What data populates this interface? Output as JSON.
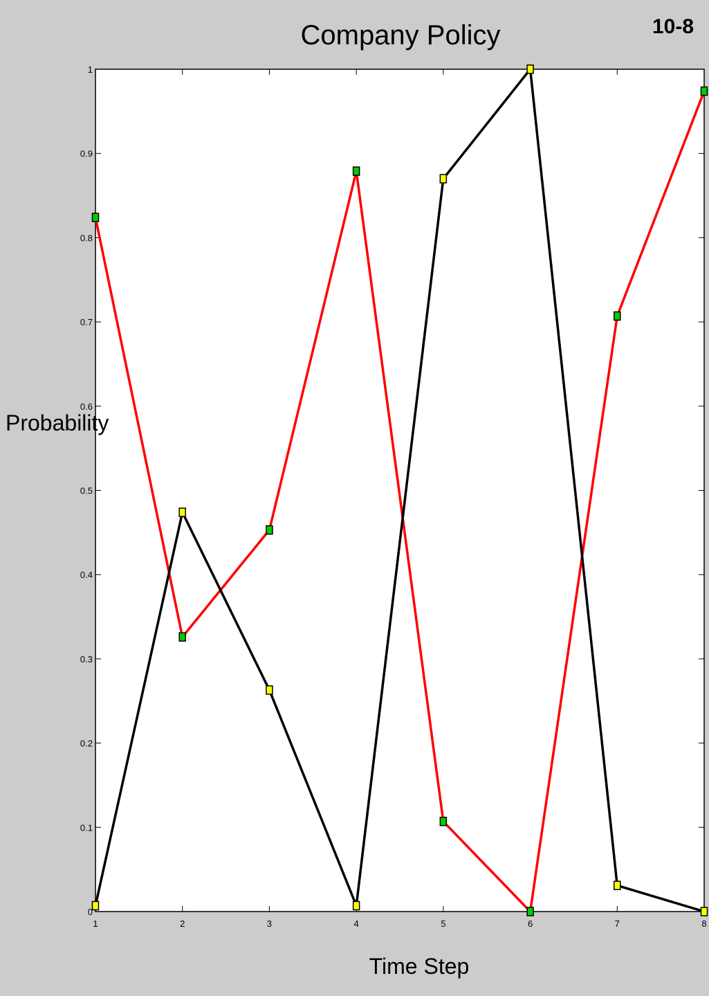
{
  "slide_number": "10-8",
  "chart_data": {
    "type": "line",
    "title": "Company Policy",
    "xlabel": "Time Step",
    "ylabel": "Probability",
    "x": [
      1,
      2,
      3,
      4,
      5,
      6,
      7,
      8
    ],
    "xlim": [
      1,
      8
    ],
    "ylim": [
      0,
      1
    ],
    "xticks": [
      "1",
      "2",
      "3",
      "4",
      "5",
      "6",
      "7",
      "8"
    ],
    "yticks": [
      "0",
      "0.1",
      "0.2",
      "0.3",
      "0.4",
      "0.5",
      "0.6",
      "0.7",
      "0.8",
      "0.9",
      "1"
    ],
    "grid": false,
    "series": [
      {
        "color": "#ff0000",
        "marker_color": "#00cc00",
        "values": [
          0.824,
          0.326,
          0.453,
          0.879,
          0.107,
          0.0,
          0.707,
          0.974
        ]
      },
      {
        "color": "#000000",
        "marker_color": "#ffff00",
        "values": [
          0.007,
          0.474,
          0.263,
          0.007,
          0.87,
          1.0,
          0.031,
          0.0
        ]
      }
    ]
  }
}
